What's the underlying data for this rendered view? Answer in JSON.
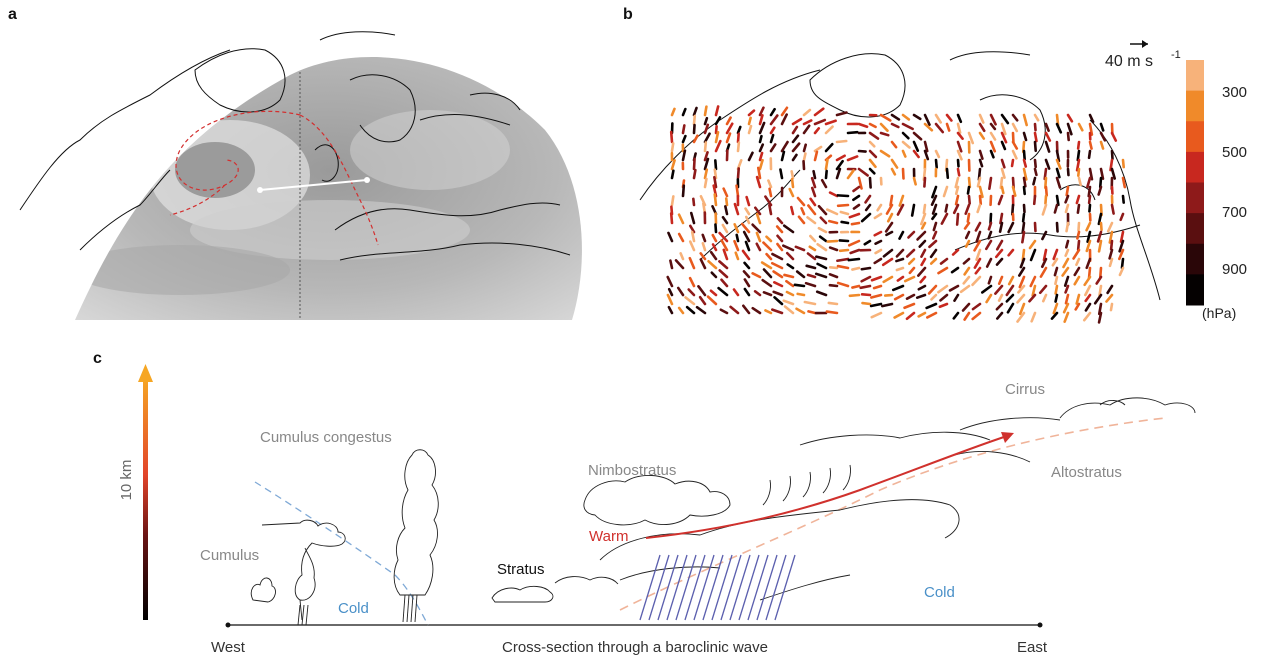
{
  "panels": {
    "a": {
      "letter": "a"
    },
    "b": {
      "letter": "b",
      "wind_scale_label": "40 m s",
      "wind_scale_exp": "-1",
      "colorbar": {
        "ticks": [
          "300",
          "500",
          "700",
          "900"
        ],
        "unit": "(hPa)",
        "colors": [
          "#f7b27a",
          "#f08a2a",
          "#e85a1e",
          "#c8281f",
          "#8e1a1a",
          "#5a0f10",
          "#2a0608",
          "#050101"
        ]
      }
    },
    "c": {
      "letter": "c",
      "height_label": "10 km",
      "west_label": "West",
      "east_label": "East",
      "axis_title": "Cross-section through a baroclinic wave",
      "clouds": {
        "cumulus": "Cumulus",
        "cumulus_congestus": "Cumulus congestus",
        "stratus": "Stratus",
        "nimbostratus": "Nimbostratus",
        "altostratus": "Altostratus",
        "cirrus": "Cirrus"
      },
      "air": {
        "cold_left": "Cold",
        "warm": "Warm",
        "cold_right": "Cold"
      },
      "colors": {
        "cold": "#4a90c8",
        "warm": "#d0312d",
        "cloud_text": "#888888",
        "rain": "#5b5fae"
      }
    }
  }
}
